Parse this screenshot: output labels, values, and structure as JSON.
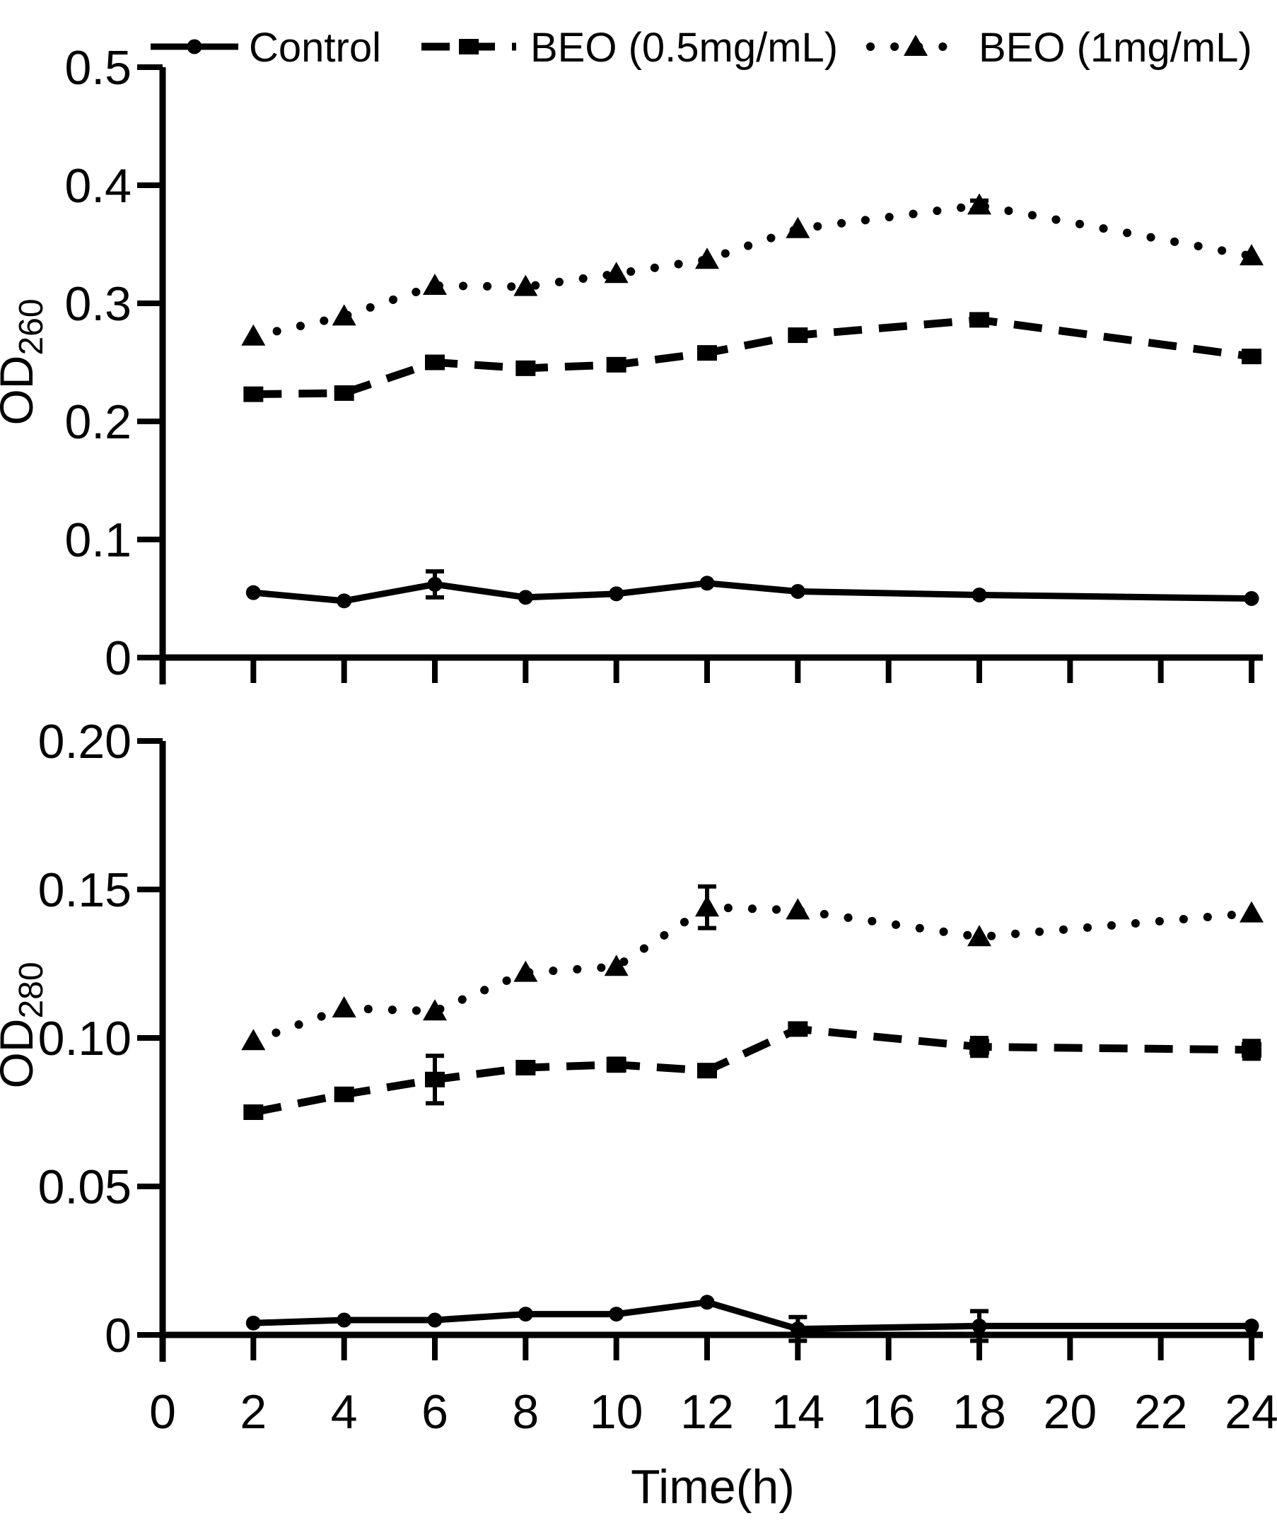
{
  "figure": {
    "background": "#ffffff",
    "ink": "#000000",
    "xlabel": "Time(h)"
  },
  "legend": {
    "position": "top",
    "items": [
      {
        "id": "control",
        "label": "Control",
        "marker": "circle",
        "line": "solid"
      },
      {
        "id": "beo-05",
        "label": "BEO (0.5mg/mL)",
        "marker": "square",
        "line": "dashed"
      },
      {
        "id": "beo-1",
        "label": "BEO (1mg/mL)",
        "marker": "triangle",
        "line": "dotted"
      }
    ]
  },
  "chart_data": [
    {
      "type": "line",
      "id": "od260",
      "ylabel": "OD",
      "ylabel_subscript": "260",
      "xlabel": "",
      "ylim": [
        0,
        0.5
      ],
      "yticks": [
        0,
        0.1,
        0.2,
        0.3,
        0.4,
        0.5
      ],
      "ytick_labels": [
        "0",
        "0.1",
        "0.2",
        "0.3",
        "0.4",
        "0.5"
      ],
      "xlim": [
        0,
        24.2
      ],
      "xticks": [
        0,
        2,
        4,
        6,
        8,
        10,
        12,
        14,
        16,
        18,
        20,
        22,
        24
      ],
      "xtick_labels": [],
      "grid": false,
      "x": [
        2,
        4,
        6,
        8,
        10,
        12,
        14,
        18,
        24
      ],
      "series": [
        {
          "id": "control",
          "name": "Control",
          "marker": "circle",
          "line": "solid",
          "values": [
            0.055,
            0.048,
            0.062,
            0.051,
            0.054,
            0.063,
            0.056,
            0.053,
            0.05
          ],
          "errors": [
            0,
            0,
            0.011,
            0,
            0,
            0,
            0,
            0,
            0
          ]
        },
        {
          "id": "beo-05",
          "name": "BEO (0.5mg/mL)",
          "marker": "square",
          "line": "dashed",
          "values": [
            0.223,
            0.224,
            0.25,
            0.245,
            0.248,
            0.258,
            0.273,
            0.286,
            0.255
          ],
          "errors": [
            0.004,
            0.004,
            0,
            0,
            0,
            0,
            0,
            0,
            0
          ]
        },
        {
          "id": "beo-1",
          "name": "BEO (1mg/mL)",
          "marker": "triangle",
          "line": "dotted",
          "values": [
            0.272,
            0.289,
            0.315,
            0.314,
            0.325,
            0.337,
            0.363,
            0.383,
            0.34
          ],
          "errors": [
            0,
            0,
            0,
            0,
            0,
            0,
            0,
            0.004,
            0
          ]
        }
      ]
    },
    {
      "type": "line",
      "id": "od280",
      "ylabel": "OD",
      "ylabel_subscript": "280",
      "xlabel": "Time(h)",
      "ylim": [
        0,
        0.2
      ],
      "yticks": [
        0,
        0.05,
        0.1,
        0.15,
        0.2
      ],
      "ytick_labels": [
        "0",
        "0.05",
        "0.10",
        "0.15",
        "0.20"
      ],
      "xlim": [
        0,
        24.2
      ],
      "xticks": [
        0,
        2,
        4,
        6,
        8,
        10,
        12,
        14,
        16,
        18,
        20,
        22,
        24
      ],
      "xtick_labels": [
        "0",
        "2",
        "4",
        "6",
        "8",
        "10",
        "12",
        "14",
        "16",
        "18",
        "20",
        "22",
        "24"
      ],
      "grid": false,
      "x": [
        2,
        4,
        6,
        8,
        10,
        12,
        14,
        18,
        24
      ],
      "series": [
        {
          "id": "control",
          "name": "Control",
          "marker": "circle",
          "line": "solid",
          "values": [
            0.004,
            0.005,
            0.005,
            0.007,
            0.007,
            0.011,
            0.002,
            0.003,
            0.003
          ],
          "errors": [
            0,
            0,
            0,
            0,
            0,
            0,
            0.004,
            0.005,
            0
          ]
        },
        {
          "id": "beo-05",
          "name": "BEO (0.5mg/mL)",
          "marker": "square",
          "line": "dashed",
          "values": [
            0.075,
            0.081,
            0.086,
            0.09,
            0.091,
            0.089,
            0.103,
            0.097,
            0.096
          ],
          "errors": [
            0,
            0,
            0.008,
            0,
            0.002,
            0,
            0,
            0.003,
            0.003
          ]
        },
        {
          "id": "beo-1",
          "name": "BEO (1mg/mL)",
          "marker": "triangle",
          "line": "dotted",
          "values": [
            0.099,
            0.11,
            0.109,
            0.122,
            0.124,
            0.144,
            0.143,
            0.134,
            0.142
          ],
          "errors": [
            0,
            0,
            0,
            0,
            0,
            0.007,
            0,
            0,
            0
          ]
        }
      ]
    }
  ]
}
